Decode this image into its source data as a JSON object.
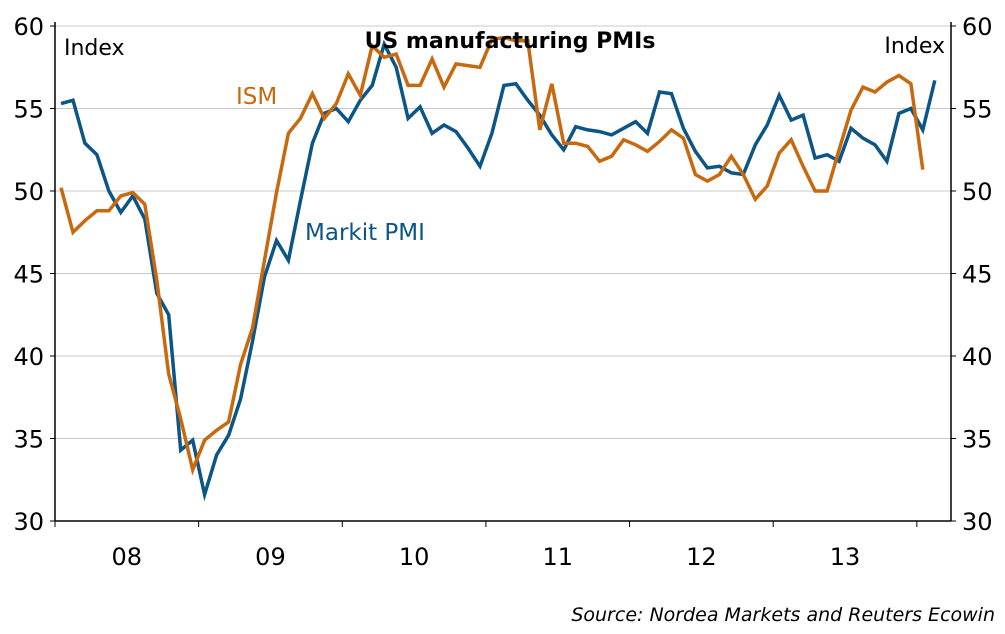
{
  "chart_data": {
    "type": "line",
    "title": "US manufacturing PMIs",
    "left_axis_label": "Index",
    "right_axis_label": "Index",
    "xlabel": "",
    "ylabel": "Index",
    "ylim": [
      30,
      60
    ],
    "yticks": [
      30,
      35,
      40,
      45,
      50,
      55,
      60
    ],
    "grid": true,
    "x_start": "2008-01",
    "x_tick_labels": [
      "08",
      "09",
      "10",
      "11",
      "12",
      "13"
    ],
    "source": "Source: Nordea Markets and Reuters Ecowin",
    "colors": {
      "ISM": "#C8690F",
      "Markit PMI": "#0B5587"
    },
    "series": [
      {
        "name": "ISM",
        "start": "2008-01",
        "values": [
          50.2,
          47.5,
          48.2,
          48.8,
          48.8,
          49.7,
          49.9,
          49.2,
          44.6,
          38.9,
          36.2,
          33.1,
          34.9,
          35.5,
          36.0,
          39.5,
          41.7,
          45.8,
          49.9,
          53.5,
          54.4,
          55.9,
          54.4,
          55.3,
          57.1,
          55.8,
          58.8,
          58.1,
          58.3,
          56.4,
          56.4,
          58.0,
          56.3,
          57.7,
          57.6,
          57.5,
          59.2,
          59.3,
          59.1,
          59.1,
          53.7,
          56.5,
          52.9,
          52.9,
          52.7,
          51.8,
          52.1,
          53.1,
          52.8,
          52.4,
          53.0,
          53.7,
          53.2,
          51.0,
          50.6,
          51.0,
          52.1,
          51.0,
          49.5,
          50.3,
          52.3,
          53.1,
          51.5,
          50.0,
          50.0,
          52.5,
          54.9,
          56.3,
          56.0,
          56.6,
          57.0,
          56.5,
          51.3
        ]
      },
      {
        "name": "Markit PMI",
        "start": "2008-01",
        "values": [
          55.3,
          55.5,
          52.9,
          52.2,
          50.0,
          48.7,
          49.7,
          48.3,
          43.8,
          42.5,
          34.3,
          34.9,
          31.6,
          34.0,
          35.2,
          37.4,
          40.9,
          44.8,
          47.0,
          45.8,
          49.4,
          52.9,
          54.7,
          55.0,
          54.2,
          55.5,
          56.4,
          58.9,
          57.5,
          54.4,
          55.1,
          53.5,
          54.0,
          53.6,
          52.6,
          51.5,
          53.5,
          56.4,
          56.5,
          55.5,
          54.6,
          53.4,
          52.5,
          53.9,
          53.7,
          53.6,
          53.4,
          53.8,
          54.2,
          53.5,
          56.0,
          55.9,
          53.8,
          52.4,
          51.4,
          51.5,
          51.1,
          51.0,
          52.8,
          54.0,
          55.8,
          54.3,
          54.6,
          52.0,
          52.2,
          51.8,
          53.8,
          53.2,
          52.8,
          51.8,
          54.7,
          55.0,
          53.7,
          56.7
        ]
      }
    ],
    "annotations": [
      {
        "text": "ISM",
        "series": "ISM"
      },
      {
        "text": "Markit PMI",
        "series": "Markit PMI"
      }
    ]
  }
}
